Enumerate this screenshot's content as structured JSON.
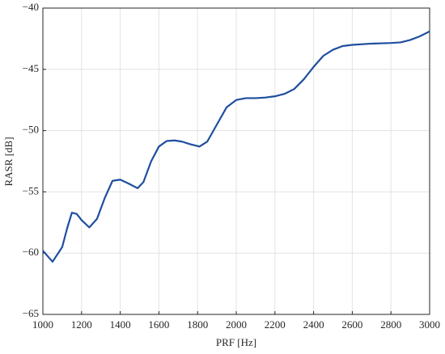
{
  "chart_data": {
    "type": "line",
    "xlabel": "PRF [Hz]",
    "ylabel": "RASR [dB]",
    "x": [
      1000,
      1050,
      1100,
      1125,
      1150,
      1175,
      1200,
      1240,
      1280,
      1320,
      1360,
      1400,
      1440,
      1490,
      1520,
      1560,
      1600,
      1640,
      1680,
      1720,
      1760,
      1810,
      1850,
      1900,
      1950,
      2000,
      2050,
      2100,
      2150,
      2200,
      2250,
      2300,
      2350,
      2400,
      2450,
      2500,
      2550,
      2600,
      2700,
      2800,
      2850,
      2900,
      2950,
      3000
    ],
    "series": [
      {
        "color": "#1f4e9e",
        "values": [
          -59.8,
          -60.7,
          -59.5,
          -58.0,
          -56.7,
          -56.8,
          -57.3,
          -57.9,
          -57.2,
          -55.5,
          -54.1,
          -54.0,
          -54.3,
          -54.7,
          -54.2,
          -52.5,
          -51.3,
          -50.85,
          -50.8,
          -50.9,
          -51.1,
          -51.3,
          -50.9,
          -49.5,
          -48.1,
          -47.5,
          -47.35,
          -47.35,
          -47.3,
          -47.2,
          -47.0,
          -46.6,
          -45.8,
          -44.8,
          -43.9,
          -43.4,
          -43.1,
          -43.0,
          -42.9,
          -42.85,
          -42.8,
          -42.6,
          -42.3,
          -41.9
        ]
      }
    ],
    "xlim": [
      1000,
      3000
    ],
    "xticks": [
      1000,
      1200,
      1400,
      1600,
      1800,
      2000,
      2200,
      2400,
      2600,
      2800,
      3000
    ],
    "ylim": [
      -65,
      -40
    ],
    "yticks": [
      {
        "value": -65,
        "label": "−65"
      },
      {
        "value": -60,
        "label": "−60"
      },
      {
        "value": -55,
        "label": "−55"
      },
      {
        "value": -50,
        "label": "−50"
      },
      {
        "value": -45,
        "label": "−45"
      },
      {
        "value": -40,
        "label": "−40"
      }
    ],
    "grid": true
  }
}
